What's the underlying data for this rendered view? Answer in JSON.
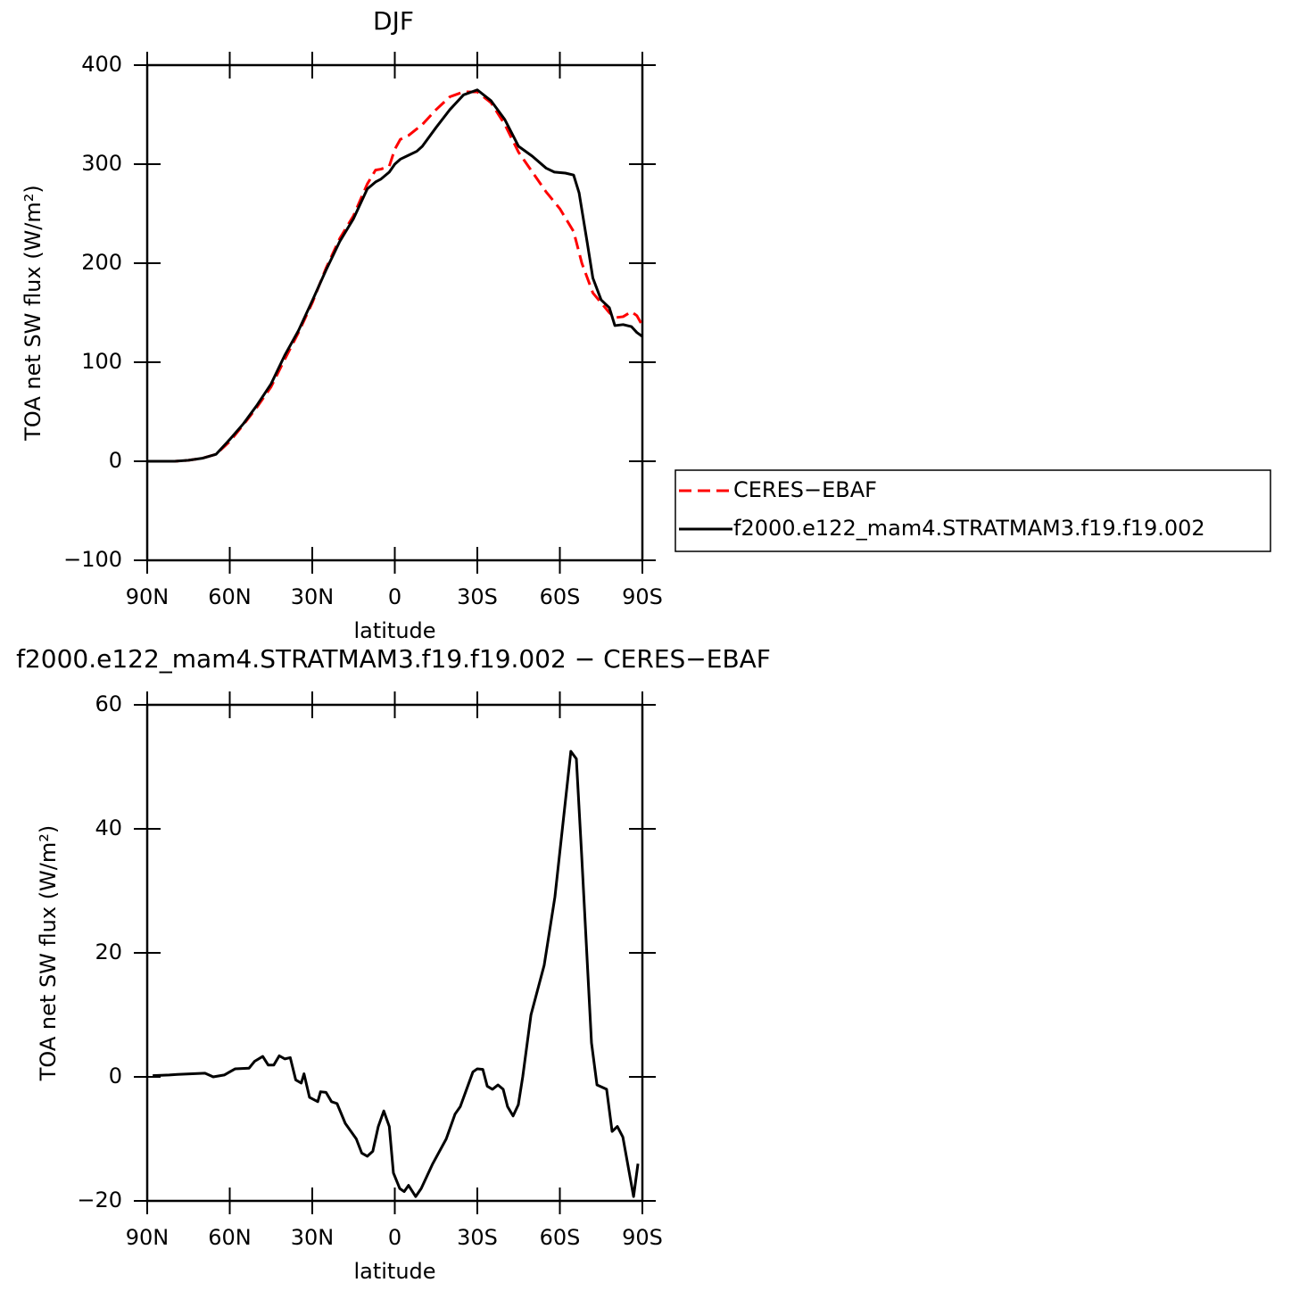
{
  "chart_data": [
    {
      "type": "line",
      "title": "DJF",
      "x_label": "latitude",
      "y_label": "TOA net SW flux (W/m²)",
      "xlim": [
        90,
        -90
      ],
      "xticks": [
        {
          "value": 90,
          "label": "90N"
        },
        {
          "value": 60,
          "label": "60N"
        },
        {
          "value": 30,
          "label": "30N"
        },
        0,
        {
          "value": -30,
          "label": "30S"
        },
        {
          "value": -60,
          "label": "60S"
        },
        {
          "value": -90,
          "label": "90S"
        }
      ],
      "ylim": [
        -100,
        400
      ],
      "yticks": [
        {
          "value": -100,
          "label": "−100"
        },
        0,
        100,
        200,
        300,
        400
      ],
      "legend": "right",
      "series": [
        {
          "name": "CERES−EBAF",
          "color": "#ff0000",
          "style": "dashed",
          "x": [
            90,
            85,
            80,
            75,
            70,
            65,
            60,
            55,
            50,
            45,
            40,
            35,
            30,
            25,
            20,
            15,
            10,
            7,
            5,
            2,
            0,
            -2,
            -5,
            -10,
            -15,
            -20,
            -25,
            -30,
            -35,
            -40,
            -45,
            -50,
            -55,
            -60,
            -65,
            -68,
            -72,
            -75,
            -78,
            -80,
            -83,
            -86,
            -88,
            -90
          ],
          "values": [
            0,
            0,
            0,
            1,
            3,
            7,
            20,
            37,
            55,
            75,
            103,
            130,
            160,
            195,
            225,
            248,
            280,
            294,
            295,
            298,
            315,
            325,
            329,
            340,
            355,
            368,
            373,
            373,
            362,
            340,
            312,
            292,
            272,
            255,
            232,
            200,
            170,
            160,
            150,
            145,
            146,
            151,
            147,
            137
          ]
        },
        {
          "name": "f2000.e122_mam4.STRATMAM3.f19.f19.002",
          "color": "#000000",
          "style": "solid",
          "x": [
            90,
            85,
            80,
            75,
            70,
            65,
            60,
            55,
            50,
            45,
            40,
            35,
            30,
            25,
            20,
            15,
            10,
            7,
            5,
            2,
            0,
            -2,
            -5,
            -8,
            -10,
            -15,
            -20,
            -25,
            -30,
            -35,
            -40,
            -45,
            -50,
            -55,
            -58,
            -62,
            -65,
            -67,
            -70,
            -72,
            -75,
            -78,
            -80,
            -83,
            -86,
            -88,
            -90
          ],
          "values": [
            0,
            0,
            0,
            1,
            3,
            7,
            22,
            38,
            57,
            78,
            107,
            132,
            162,
            193,
            222,
            245,
            275,
            282,
            285,
            292,
            300,
            305,
            309,
            313,
            318,
            337,
            355,
            370,
            375,
            364,
            345,
            318,
            308,
            296,
            292,
            291,
            289,
            271,
            220,
            185,
            163,
            155,
            137,
            138,
            136,
            130,
            126
          ]
        }
      ]
    },
    {
      "type": "line",
      "title": "f2000.e122_mam4.STRATMAM3.f19.f19.002 − CERES−EBAF",
      "x_label": "latitude",
      "y_label": "TOA net SW flux (W/m²)",
      "xlim": [
        90,
        -90
      ],
      "xticks": [
        {
          "value": 90,
          "label": "90N"
        },
        {
          "value": 60,
          "label": "60N"
        },
        {
          "value": 30,
          "label": "30N"
        },
        0,
        {
          "value": -30,
          "label": "30S"
        },
        {
          "value": -60,
          "label": "60S"
        },
        {
          "value": -90,
          "label": "90S"
        }
      ],
      "ylim": [
        -20,
        60
      ],
      "yticks": [
        {
          "value": -20,
          "label": "−20"
        },
        0,
        20,
        40,
        60
      ],
      "series": [
        {
          "color": "#000000",
          "style": "solid",
          "x": [
            88,
            82,
            79,
            69,
            66,
            62,
            58,
            53,
            51,
            48,
            46,
            44,
            42,
            40,
            38,
            36,
            34,
            33,
            31,
            28,
            27,
            25,
            23,
            21,
            18,
            14,
            12,
            10,
            8,
            6,
            4,
            2,
            0.5,
            -1.8,
            -3.4,
            -5,
            -7.6,
            -9.6,
            -13.8,
            -18.7,
            -21.9,
            -23.8,
            -28.4,
            -30,
            -32,
            -33.6,
            -35.5,
            -37.5,
            -39.4,
            -41,
            -43,
            -44.9,
            -46.5,
            -49.5,
            -54.3,
            -58.2,
            -64,
            -66,
            -67.9,
            -71.5,
            -73.5,
            -77,
            -79,
            -80.9,
            -82.9,
            -86.8,
            -88.4
          ],
          "values": [
            0.2,
            0.3,
            0.4,
            0.6,
            0,
            0.3,
            1.3,
            1.4,
            2.5,
            3.3,
            1.9,
            1.9,
            3.4,
            2.9,
            3.1,
            -0.5,
            -1,
            0.5,
            -3.3,
            -4,
            -2.4,
            -2.5,
            -4,
            -4.3,
            -7.5,
            -10,
            -12.3,
            -12.8,
            -12,
            -8,
            -5.5,
            -8,
            -15.5,
            -18,
            -18.5,
            -17.5,
            -19.3,
            -18,
            -14,
            -10,
            -6,
            -4.8,
            0.8,
            1.3,
            1.2,
            -1.5,
            -2,
            -1.3,
            -2,
            -4.8,
            -6.3,
            -4.5,
            0,
            10,
            18,
            29,
            52.5,
            51.3,
            36,
            5.5,
            -1.3,
            -2,
            -8.8,
            -8,
            -9.7,
            -19.3,
            -14
          ]
        }
      ]
    }
  ]
}
